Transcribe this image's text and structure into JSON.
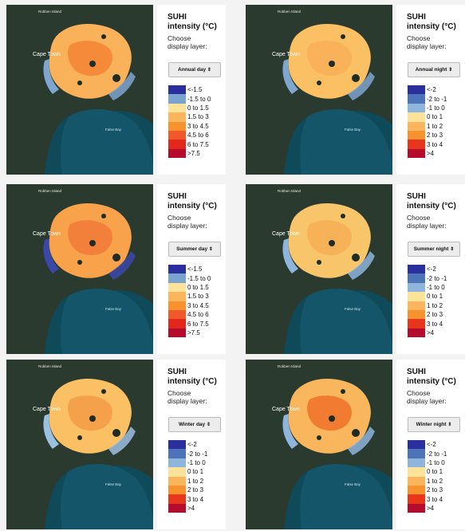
{
  "panels": [
    {
      "title_line1": "SUHI",
      "title_line2": "intensity (°C)",
      "choose_line1": "Choose",
      "choose_line2": "display layer:",
      "layer": "Annual day",
      "map_labels": {
        "island": "Robben Island",
        "city": "Cape Town",
        "bay": "False Bay"
      },
      "legend": [
        {
          "label": "<-1.5",
          "color": "#2b2f9e"
        },
        {
          "label": "-1.5 to 0",
          "color": "#7aa3cf"
        },
        {
          "label": "0 to 1.5",
          "color": "#fde29a"
        },
        {
          "label": "1.5 to 3",
          "color": "#fbb55c"
        },
        {
          "label": "3 to 4.5",
          "color": "#f7922f"
        },
        {
          "label": "4.5 to 6",
          "color": "#f05a2a"
        },
        {
          "label": "6 to 7.5",
          "color": "#e3271c"
        },
        {
          "label": ">7.5",
          "color": "#b50b2d"
        }
      ]
    },
    {
      "title_line1": "SUHI",
      "title_line2": "intensity (°C)",
      "choose_line1": "Choose",
      "choose_line2": "display layer:",
      "layer": "Annual night",
      "map_labels": {
        "island": "Robben Island",
        "city": "Cape Town",
        "bay": "False Bay"
      },
      "legend": [
        {
          "label": "<-2",
          "color": "#2b2f9e"
        },
        {
          "label": "-2 to -1",
          "color": "#4d74b8"
        },
        {
          "label": "-1 to 0",
          "color": "#8fb5dc"
        },
        {
          "label": "0 to 1",
          "color": "#fde29a"
        },
        {
          "label": "1 to 2",
          "color": "#fbb55c"
        },
        {
          "label": "2 to 3",
          "color": "#f7922f"
        },
        {
          "label": "3 to 4",
          "color": "#e8361d"
        },
        {
          "label": ">4",
          "color": "#b50b2d"
        }
      ]
    },
    {
      "title_line1": "SUHI",
      "title_line2": "intensity (°C)",
      "choose_line1": "Choose",
      "choose_line2": "display layer:",
      "layer": "Summer day",
      "map_labels": {
        "island": "Robben Island",
        "city": "Cape Town",
        "bay": "False Bay"
      },
      "legend": [
        {
          "label": "<-1.5",
          "color": "#2b2f9e"
        },
        {
          "label": "-1.5 to 0",
          "color": "#7aa3cf"
        },
        {
          "label": "0 to 1.5",
          "color": "#fde29a"
        },
        {
          "label": "1.5 to 3",
          "color": "#fbb55c"
        },
        {
          "label": "3 to 4.5",
          "color": "#f7922f"
        },
        {
          "label": "4.5 to 6",
          "color": "#f05a2a"
        },
        {
          "label": "6 to 7.5",
          "color": "#e3271c"
        },
        {
          "label": ">7.5",
          "color": "#b50b2d"
        }
      ]
    },
    {
      "title_line1": "SUHI",
      "title_line2": "intensity (°C)",
      "choose_line1": "Choose",
      "choose_line2": "display layer:",
      "layer": "Summer night",
      "map_labels": {
        "island": "Robben Island",
        "city": "Cape Town",
        "bay": "False Bay"
      },
      "legend": [
        {
          "label": "<-2",
          "color": "#2b2f9e"
        },
        {
          "label": "-2 to -1",
          "color": "#4d74b8"
        },
        {
          "label": "-1 to 0",
          "color": "#8fb5dc"
        },
        {
          "label": "0 to 1",
          "color": "#fde29a"
        },
        {
          "label": "1 to 2",
          "color": "#fbb55c"
        },
        {
          "label": "2 to 3",
          "color": "#f7922f"
        },
        {
          "label": "3 to 4",
          "color": "#e8361d"
        },
        {
          "label": ">4",
          "color": "#b50b2d"
        }
      ]
    },
    {
      "title_line1": "SUHI",
      "title_line2": "intensity (°C)",
      "choose_line1": "Choose",
      "choose_line2": "display layer:",
      "layer": "Winter day",
      "map_labels": {
        "island": "Robben Island",
        "city": "Cape Town",
        "bay": "False Bay"
      },
      "legend": [
        {
          "label": "<-2",
          "color": "#2b2f9e"
        },
        {
          "label": "-2 to -1",
          "color": "#4d74b8"
        },
        {
          "label": "-1 to 0",
          "color": "#8fb5dc"
        },
        {
          "label": "0 to 1",
          "color": "#fde29a"
        },
        {
          "label": "1 to 2",
          "color": "#fbb55c"
        },
        {
          "label": "2 to 3",
          "color": "#f7922f"
        },
        {
          "label": "3 to 4",
          "color": "#e8361d"
        },
        {
          "label": ">4",
          "color": "#b50b2d"
        }
      ]
    },
    {
      "title_line1": "SUHI",
      "title_line2": "intensity (°C)",
      "choose_line1": "Choose",
      "choose_line2": "display layer:",
      "layer": "Winter night",
      "map_labels": {
        "island": "Robben Island",
        "city": "Cape Town",
        "bay": "False Bay"
      },
      "legend": [
        {
          "label": "<-2",
          "color": "#2b2f9e"
        },
        {
          "label": "-2 to -1",
          "color": "#4d74b8"
        },
        {
          "label": "-1 to 0",
          "color": "#8fb5dc"
        },
        {
          "label": "0 to 1",
          "color": "#fde29a"
        },
        {
          "label": "1 to 2",
          "color": "#fbb55c"
        },
        {
          "label": "2 to 3",
          "color": "#f7922f"
        },
        {
          "label": "3 to 4",
          "color": "#e8361d"
        },
        {
          "label": ">4",
          "color": "#b50b2d"
        }
      ]
    }
  ]
}
